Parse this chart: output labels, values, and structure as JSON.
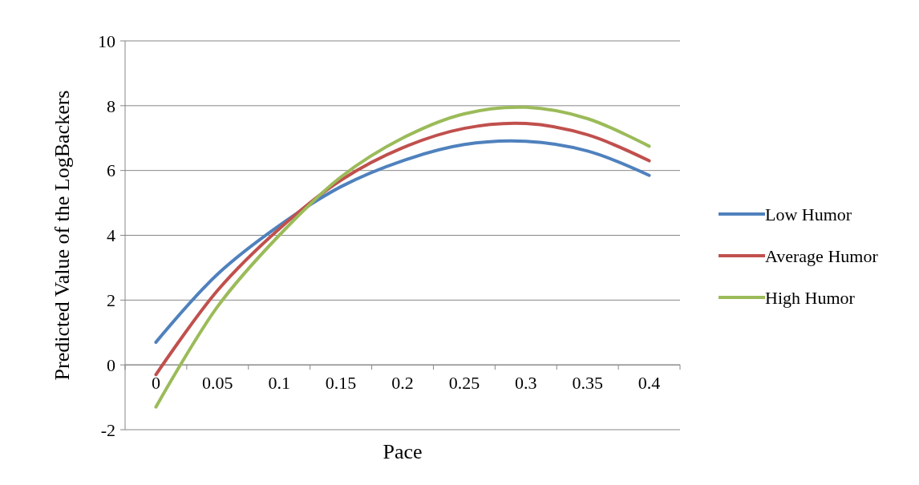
{
  "chart_data": {
    "type": "line",
    "xlabel": "Pace",
    "ylabel": "Predicted Value of the LogBackers",
    "categories": [
      "0",
      "0.05",
      "0.1",
      "0.15",
      "0.2",
      "0.25",
      "0.3",
      "0.35",
      "0.4"
    ],
    "series": [
      {
        "name": "Low Humor",
        "color": "#4f81bd",
        "values": [
          0.7,
          2.8,
          4.3,
          5.5,
          6.3,
          6.8,
          6.9,
          6.6,
          5.85
        ]
      },
      {
        "name": "Average Humor",
        "color": "#c0504d",
        "values": [
          -0.3,
          2.3,
          4.2,
          5.7,
          6.7,
          7.3,
          7.45,
          7.1,
          6.3
        ]
      },
      {
        "name": "High Humor",
        "color": "#9bbb59",
        "values": [
          -1.3,
          1.8,
          4.0,
          5.8,
          7.0,
          7.75,
          7.95,
          7.6,
          6.75
        ]
      }
    ],
    "ylim": [
      -2,
      10
    ],
    "yticks": [
      -2,
      0,
      2,
      4,
      6,
      8,
      10
    ],
    "grid": "y",
    "legend": "right",
    "marker": "none",
    "line_style": "solid"
  }
}
